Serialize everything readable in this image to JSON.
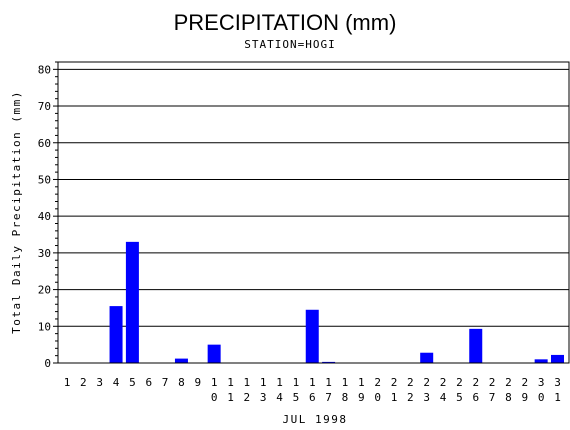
{
  "chart_data": {
    "type": "bar",
    "title": "PRECIPITATION (mm)",
    "subtitle": "STATION=HOGI",
    "xlabel": "JUL 1998",
    "ylabel": "Total Daily Precipitation (mm)",
    "ylim": [
      0,
      82
    ],
    "yticks": [
      0,
      10,
      20,
      30,
      40,
      50,
      60,
      70,
      80
    ],
    "grid": true,
    "bar_color": "#0000ff",
    "categories": [
      "1",
      "2",
      "3",
      "4",
      "5",
      "6",
      "7",
      "8",
      "9",
      "10",
      "11",
      "12",
      "13",
      "14",
      "15",
      "16",
      "17",
      "18",
      "19",
      "20",
      "21",
      "22",
      "23",
      "24",
      "25",
      "26",
      "27",
      "28",
      "29",
      "30",
      "31"
    ],
    "values": [
      0,
      0,
      0,
      15.5,
      33,
      0,
      0,
      1.2,
      0,
      5,
      0,
      0,
      0,
      0,
      0,
      14.5,
      0.3,
      0,
      0,
      0,
      0,
      0,
      2.8,
      0,
      0,
      9.3,
      0,
      0,
      0,
      1,
      2.2
    ]
  }
}
